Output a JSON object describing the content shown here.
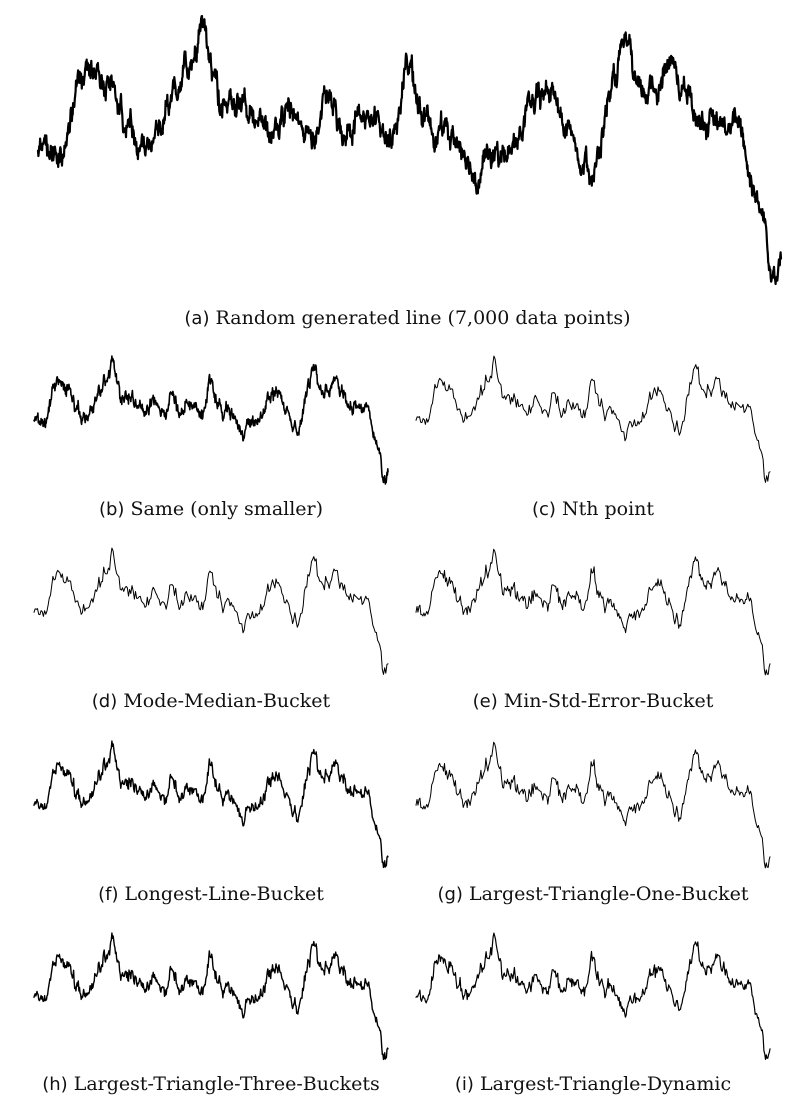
{
  "chart_data": [
    {
      "id": "a",
      "type": "line",
      "label": "(a)",
      "caption": "Random generated line (7,000 data points)",
      "n_points": 7000,
      "title": "",
      "xlabel": "",
      "ylabel": "",
      "grid": false,
      "axes_visible": false,
      "line_color": "#000000"
    },
    {
      "id": "b",
      "type": "line",
      "label": "(b)",
      "caption": "Same (only smaller)",
      "n_points": 7000,
      "title": "",
      "xlabel": "",
      "ylabel": "",
      "grid": false,
      "axes_visible": false,
      "line_color": "#000000"
    },
    {
      "id": "c",
      "type": "line",
      "label": "(c)",
      "caption": "Nth point",
      "title": "",
      "xlabel": "",
      "ylabel": "",
      "grid": false,
      "axes_visible": false,
      "line_color": "#000000"
    },
    {
      "id": "d",
      "type": "line",
      "label": "(d)",
      "caption": "Mode-Median-Bucket",
      "title": "",
      "xlabel": "",
      "ylabel": "",
      "grid": false,
      "axes_visible": false,
      "line_color": "#000000"
    },
    {
      "id": "e",
      "type": "line",
      "label": "(e)",
      "caption": "Min-Std-Error-Bucket",
      "title": "",
      "xlabel": "",
      "ylabel": "",
      "grid": false,
      "axes_visible": false,
      "line_color": "#000000"
    },
    {
      "id": "f",
      "type": "line",
      "label": "(f)",
      "caption": "Longest-Line-Bucket",
      "title": "",
      "xlabel": "",
      "ylabel": "",
      "grid": false,
      "axes_visible": false,
      "line_color": "#000000"
    },
    {
      "id": "g",
      "type": "line",
      "label": "(g)",
      "caption": "Largest-Triangle-One-Bucket",
      "title": "",
      "xlabel": "",
      "ylabel": "",
      "grid": false,
      "axes_visible": false,
      "line_color": "#000000"
    },
    {
      "id": "h",
      "type": "line",
      "label": "(h)",
      "caption": "Largest-Triangle-Three-Buckets",
      "title": "",
      "xlabel": "",
      "ylabel": "",
      "grid": false,
      "axes_visible": false,
      "line_color": "#000000"
    },
    {
      "id": "i",
      "type": "line",
      "label": "(i)",
      "caption": "Largest-Triangle-Dynamic",
      "title": "",
      "xlabel": "",
      "ylabel": "",
      "grid": false,
      "axes_visible": false,
      "line_color": "#000000"
    }
  ]
}
